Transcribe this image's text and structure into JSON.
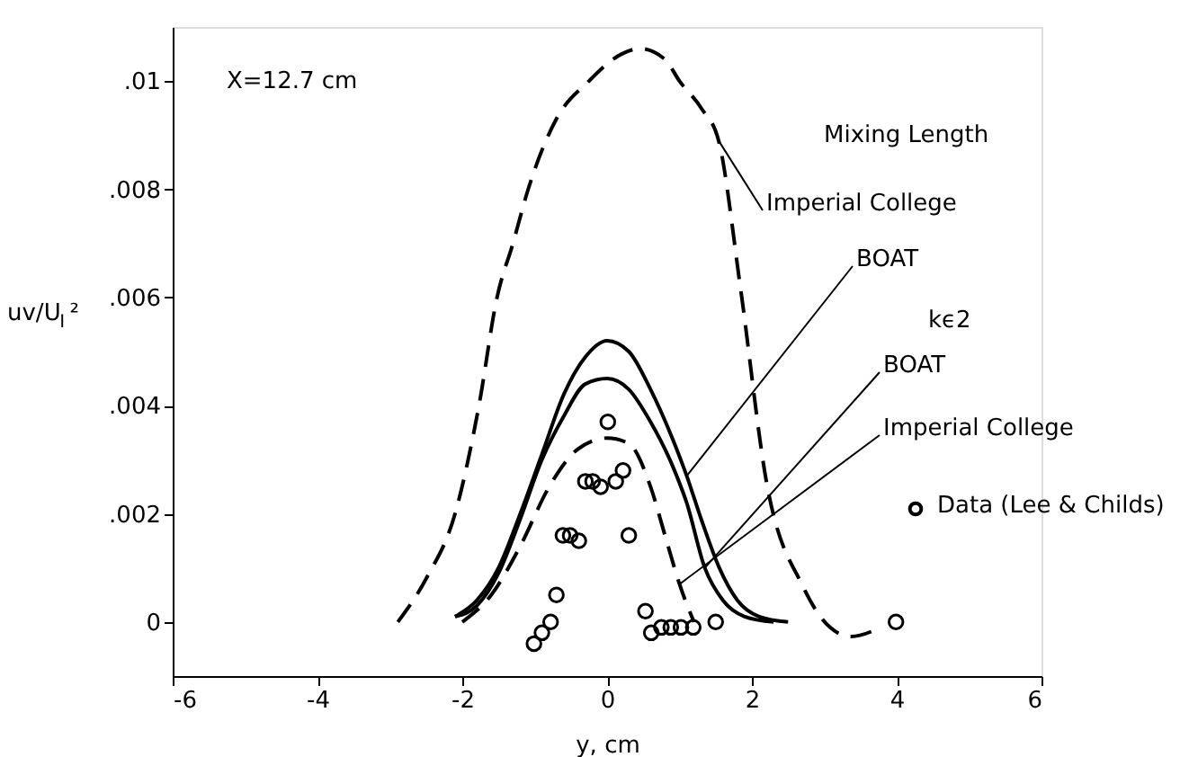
{
  "chart_data": {
    "type": "line",
    "xlabel": "y, cm",
    "ylabel": "uv/U$_{I}$²",
    "xlim": [
      -6,
      6
    ],
    "ylim": [
      -0.001,
      0.011
    ],
    "xticks": [
      -6,
      -4,
      -2,
      0,
      2,
      4,
      6
    ],
    "yticks": [
      {
        "value": 0,
        "label": "0"
      },
      {
        "value": 0.002,
        "label": ".002"
      },
      {
        "value": 0.004,
        "label": ".004"
      },
      {
        "value": 0.006,
        "label": ".006"
      },
      {
        "value": 0.008,
        "label": ".008"
      },
      {
        "value": 0.01,
        "label": ".01"
      }
    ],
    "grid": false,
    "legend": "right",
    "annotations": [
      "X=12.7 cm",
      "Mixing Length",
      "kϵ2"
    ],
    "series": [
      {
        "name": "Imperial College",
        "line_style": "dashed",
        "color": "#000000",
        "x": [
          -2.89,
          -2.5,
          -2.1,
          -1.77,
          -1.52,
          -1.3,
          -1.09,
          -0.7,
          -0.25,
          0.2,
          0.45,
          0.8,
          1.0,
          1.3,
          1.54,
          1.84,
          2.2,
          2.7,
          3.08,
          3.37,
          3.7
        ],
        "values": [
          0,
          0.0008,
          0.002,
          0.004,
          0.006,
          0.007,
          0.008,
          0.0093,
          0.01,
          0.0105,
          0.0106,
          0.0104,
          0.01,
          0.0095,
          0.0089,
          0.0062,
          0.0026,
          0.00067,
          -0.0001,
          -0.00027,
          -0.00015
        ]
      },
      {
        "name": "BOAT",
        "line_style": "solid",
        "color": "#000000",
        "x": [
          -2.1,
          -1.8,
          -1.5,
          -1.2,
          -0.9,
          -0.6,
          -0.3,
          0,
          0.3,
          0.6,
          0.9,
          1.1,
          1.3,
          1.55,
          1.8,
          2.1,
          2.5
        ],
        "values": [
          0.0001,
          0.0004,
          0.001,
          0.002,
          0.0031,
          0.0042,
          0.0049,
          0.0052,
          0.005,
          0.0043,
          0.0034,
          0.0027,
          0.0019,
          0.001,
          0.0004,
          0.0001,
          0
        ]
      },
      {
        "name": "BOAT",
        "line_style": "solid",
        "color": "#000000",
        "x": [
          -2.1,
          -1.8,
          -1.5,
          -1.2,
          -0.9,
          -0.6,
          -0.3,
          0,
          0.3,
          0.6,
          0.9,
          1.1,
          1.35,
          1.6,
          1.9,
          2.3
        ],
        "values": [
          0.0001,
          0.0003,
          0.0009,
          0.0019,
          0.003,
          0.0038,
          0.0044,
          0.0045,
          0.0043,
          0.0037,
          0.0029,
          0.0022,
          0.001,
          0.0004,
          0.0001,
          0
        ]
      },
      {
        "name": "Imperial College",
        "line_style": "dashed",
        "color": "#000000",
        "x": [
          -2.0,
          -1.6,
          -1.2,
          -0.8,
          -0.4,
          0,
          0.3,
          0.6,
          0.8,
          1.0,
          1.2
        ],
        "values": [
          0,
          0.0005,
          0.0014,
          0.0025,
          0.0032,
          0.0034,
          0.0033,
          0.0025,
          0.0016,
          0.0007,
          0
        ]
      },
      {
        "name": "Data (Lee & Childs)",
        "type": "scatter",
        "marker": "circle",
        "color": "#000000",
        "x": [
          0.01,
          -0.3,
          -0.2,
          -0.09,
          0.12,
          0.22,
          -0.61,
          -0.51,
          -0.39,
          0.3,
          -0.7,
          -0.78,
          -0.9,
          -1.01,
          0.53,
          0.61,
          0.75,
          0.88,
          1.02,
          1.19,
          1.5,
          3.99
        ],
        "values": [
          0.0037,
          0.0026,
          0.0026,
          0.0025,
          0.0026,
          0.0028,
          0.0016,
          0.0016,
          0.0015,
          0.0016,
          0.0005,
          0.0,
          -0.0002,
          -0.0004,
          0.0002,
          -0.0002,
          -0.0001,
          -0.0001,
          -0.0001,
          -0.0001,
          0.0,
          0
        ]
      }
    ]
  }
}
